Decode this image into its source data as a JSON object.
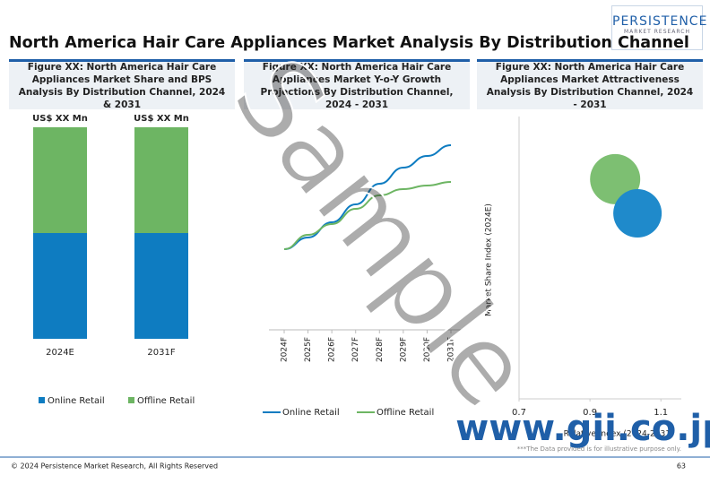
{
  "header": {
    "title": "North America Hair Care Appliances Market Analysis By Distribution Channel",
    "logo": {
      "name": "PERSISTENCE",
      "tagline": "MARKET RESEARCH"
    }
  },
  "chart_data": [
    {
      "type": "bar",
      "stacked": true,
      "title": "Figure XX: North America Hair Care Appliances Market Share and BPS Analysis By Distribution Channel, 2024 & 2031",
      "categories": [
        "2024E",
        "2031F"
      ],
      "annotations": [
        "US$ XX Mn",
        "US$ XX Mn"
      ],
      "series": [
        {
          "name": "Online Retail",
          "color": "#0e7cc1",
          "values": [
            50,
            50
          ]
        },
        {
          "name": "Offline Retail",
          "color": "#6db563",
          "values": [
            50,
            50
          ]
        }
      ]
    },
    {
      "type": "line",
      "title": "Figure XX: North America Hair Care Appliances Market Y-o-Y Growth Projections By Distribution Channel, 2024 - 2031",
      "categories": [
        "2024F",
        "2025F",
        "2026F",
        "2027F",
        "2028F",
        "2029F",
        "2030F",
        "2031F"
      ],
      "series": [
        {
          "name": "Online Retail",
          "color": "#0e7cc1",
          "values": [
            22,
            35,
            52,
            72,
            95,
            113,
            126,
            138
          ]
        },
        {
          "name": "Offline Retail",
          "color": "#6db563",
          "values": [
            22,
            38,
            50,
            67,
            82,
            89,
            93,
            97
          ]
        }
      ]
    },
    {
      "type": "scatter",
      "title": "Figure XX: North America Hair Care Appliances Market Attractiveness Analysis By Distribution Channel, 2024 - 2031",
      "xlabel": "Relative Index (2024-2031)",
      "ylabel": "Market Share Index (2024E)",
      "xlim": [
        0.7,
        1.15
      ],
      "xticks": [
        0.7,
        0.9,
        1.1
      ],
      "ylim": [
        0,
        2
      ],
      "series": [
        {
          "name": "Offline Retail",
          "color": "#7dbf72",
          "x": [
            0.971
          ],
          "values": [
            1.556
          ],
          "sizes": [
            28
          ]
        },
        {
          "name": "Online Retail",
          "color": "#1f8acb",
          "x": [
            1.034
          ],
          "values": [
            1.314
          ],
          "sizes": [
            27
          ]
        }
      ],
      "note": "***The Data provided is for illustrative purpose only."
    }
  ],
  "watermark": "Sample",
  "site": "www.gii.co.jp",
  "footer": {
    "copyright": "© 2024 Persistence Market Research, All Rights Reserved",
    "page": "63"
  }
}
